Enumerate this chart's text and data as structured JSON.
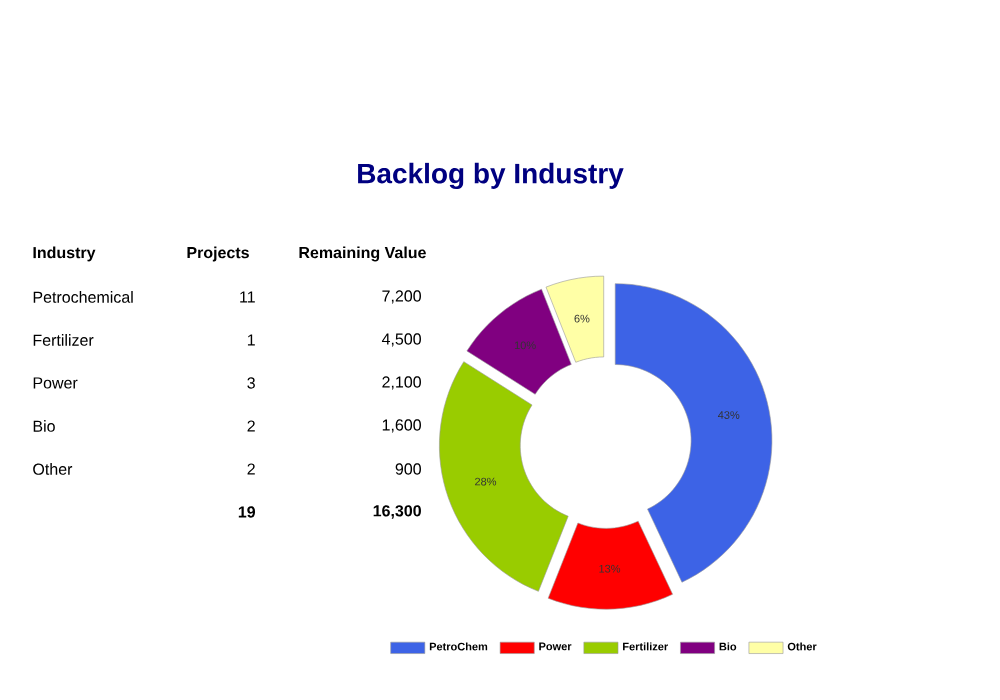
{
  "chart_data": [
    {
      "type": "other",
      "title": "Backlog by Industry",
      "annotations": [
        "Industry",
        "Projects",
        "Remaining Value",
        "Petrochemical",
        "11",
        "7,200",
        "Fertilizer",
        "1",
        "4,500",
        "Power",
        "3",
        "2,100",
        "Bio",
        "2",
        "1,600",
        "Other",
        "2",
        "900",
        "19",
        "16,300"
      ]
    },
    {
      "type": "donut",
      "categories": [
        "PetroChem",
        "Power",
        "Fertilizer",
        "Bio",
        "Other"
      ],
      "values": [
        43,
        13,
        28,
        10,
        6
      ],
      "value_labels": [
        "43%",
        "13%",
        "28%",
        "10%",
        "6%"
      ],
      "colors": [
        "#3d63e6",
        "#ff0000",
        "#99cc00",
        "#800080",
        "#ffffa6"
      ],
      "legend": "bottom"
    }
  ]
}
